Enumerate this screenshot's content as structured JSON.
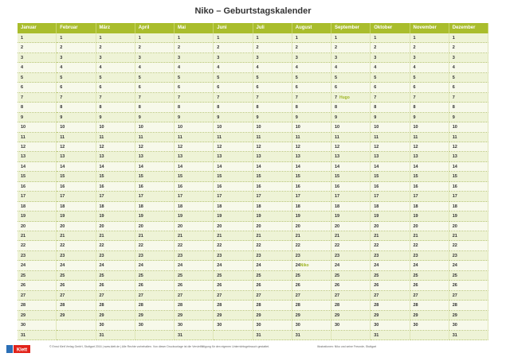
{
  "header": {
    "title": "Niko – Geburtstagskalender"
  },
  "calendar": {
    "months": [
      {
        "name": "Januar",
        "days": [
          1,
          2,
          3,
          4,
          5,
          6,
          7,
          8,
          9,
          10,
          11,
          12,
          13,
          14,
          15,
          16,
          17,
          18,
          19,
          20,
          21,
          22,
          23,
          24,
          25,
          26,
          27,
          28,
          29,
          30,
          31
        ]
      },
      {
        "name": "Februar",
        "days": [
          1,
          2,
          3,
          4,
          5,
          6,
          7,
          8,
          9,
          10,
          11,
          12,
          13,
          14,
          15,
          16,
          17,
          18,
          19,
          20,
          21,
          22,
          23,
          24,
          25,
          26,
          27,
          28,
          29
        ]
      },
      {
        "name": "März",
        "days": [
          1,
          2,
          3,
          4,
          5,
          6,
          7,
          8,
          9,
          10,
          11,
          12,
          13,
          14,
          15,
          16,
          17,
          18,
          19,
          20,
          21,
          22,
          23,
          24,
          25,
          26,
          27,
          28,
          29,
          30,
          31
        ]
      },
      {
        "name": "April",
        "days": [
          1,
          2,
          3,
          4,
          5,
          6,
          7,
          8,
          9,
          10,
          11,
          12,
          13,
          14,
          15,
          16,
          17,
          18,
          19,
          20,
          21,
          22,
          23,
          24,
          25,
          26,
          27,
          28,
          29,
          30
        ]
      },
      {
        "name": "Mai",
        "days": [
          1,
          2,
          3,
          4,
          5,
          6,
          7,
          8,
          9,
          10,
          11,
          12,
          13,
          14,
          15,
          16,
          17,
          18,
          19,
          20,
          21,
          22,
          23,
          24,
          25,
          26,
          27,
          28,
          29,
          30,
          31
        ]
      },
      {
        "name": "Juni",
        "days": [
          1,
          2,
          3,
          4,
          5,
          6,
          7,
          8,
          9,
          10,
          11,
          12,
          13,
          14,
          15,
          16,
          17,
          18,
          19,
          20,
          21,
          22,
          23,
          24,
          25,
          26,
          27,
          28,
          29,
          30
        ]
      },
      {
        "name": "Juli",
        "days": [
          1,
          2,
          3,
          4,
          5,
          6,
          7,
          8,
          9,
          10,
          11,
          12,
          13,
          14,
          15,
          16,
          17,
          18,
          19,
          20,
          21,
          22,
          23,
          24,
          25,
          26,
          27,
          28,
          29,
          30,
          31
        ]
      },
      {
        "name": "August",
        "days": [
          1,
          2,
          3,
          4,
          5,
          6,
          7,
          8,
          9,
          10,
          11,
          12,
          13,
          14,
          15,
          16,
          17,
          18,
          19,
          20,
          21,
          22,
          23,
          24,
          25,
          26,
          27,
          28,
          29,
          30,
          31
        ]
      },
      {
        "name": "September",
        "days": [
          1,
          2,
          3,
          4,
          5,
          6,
          7,
          8,
          9,
          10,
          11,
          12,
          13,
          14,
          15,
          16,
          17,
          18,
          19,
          20,
          21,
          22,
          23,
          24,
          25,
          26,
          27,
          28,
          29,
          30
        ]
      },
      {
        "name": "Oktober",
        "days": [
          1,
          2,
          3,
          4,
          5,
          6,
          7,
          8,
          9,
          10,
          11,
          12,
          13,
          14,
          15,
          16,
          17,
          18,
          19,
          20,
          21,
          22,
          23,
          24,
          25,
          26,
          27,
          28,
          29,
          30,
          31
        ]
      },
      {
        "name": "November",
        "days": [
          1,
          2,
          3,
          4,
          5,
          6,
          7,
          8,
          9,
          10,
          11,
          12,
          13,
          14,
          15,
          16,
          17,
          18,
          19,
          20,
          21,
          22,
          23,
          24,
          25,
          26,
          27,
          28,
          29,
          30
        ]
      },
      {
        "name": "Dezember",
        "days": [
          1,
          2,
          3,
          4,
          5,
          6,
          7,
          8,
          9,
          10,
          11,
          12,
          13,
          14,
          15,
          16,
          17,
          18,
          19,
          20,
          21,
          22,
          23,
          24,
          25,
          26,
          27,
          28,
          29,
          30,
          31
        ]
      }
    ],
    "entries": [
      {
        "month": 8,
        "day": 7,
        "label": "Hugo"
      },
      {
        "month": 7,
        "day": 24,
        "label": "Niko"
      }
    ]
  },
  "footer": {
    "left": "© Ernst Klett Verlag GmbH, Stuttgart 2016 | www.klett.de | Alle Rechte vorbehalten. Von dieser Druckvorlage ist die Vervielfältigung für den eigenen Unterrichtsgebrauch gestattet.",
    "right": "Illustrationen: Niko und seine Freunde, Stuttgart",
    "logo": "Klett"
  }
}
